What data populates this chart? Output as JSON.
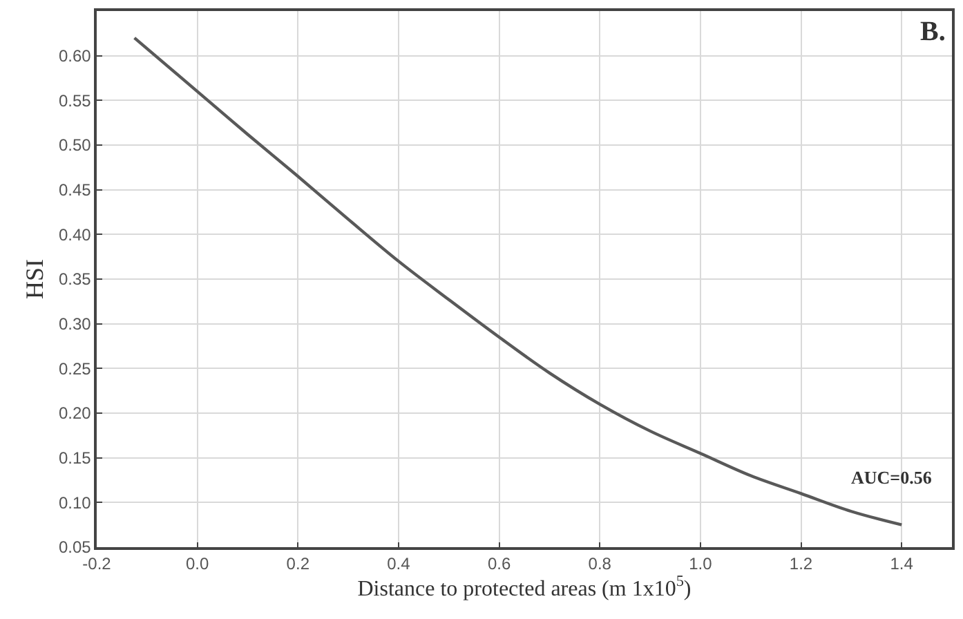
{
  "chart_data": {
    "type": "line",
    "xlabel": "Distance to protected areas (m 1x10$^{5}$)",
    "ylabel": "HSI",
    "annotations": [
      "B.",
      "AUC=0.56"
    ],
    "x": [
      -0.125,
      0.0,
      0.1,
      0.2,
      0.3,
      0.4,
      0.5,
      0.6,
      0.7,
      0.8,
      0.9,
      1.0,
      1.1,
      1.2,
      1.3,
      1.4
    ],
    "series": [
      {
        "color": "#595959",
        "values": [
          0.62,
          0.56,
          0.512,
          0.465,
          0.417,
          0.37,
          0.327,
          0.285,
          0.245,
          0.21,
          0.18,
          0.155,
          0.13,
          0.11,
          0.09,
          0.075
        ]
      }
    ],
    "xlim": [
      -0.2,
      1.5
    ],
    "xticks": [
      {
        "value": -0.2,
        "label": "-0.2"
      },
      {
        "value": 0,
        "label": "0.0"
      },
      0.2,
      0.4,
      0.6,
      0.8,
      {
        "value": 1,
        "label": "1.0"
      },
      1.2,
      1.4
    ],
    "ylim": [
      0.05,
      0.65
    ],
    "yticks": [
      {
        "value": 0.05,
        "label": "0.05"
      },
      {
        "value": 0.1,
        "label": "0.10"
      },
      {
        "value": 0.15,
        "label": "0.15"
      },
      {
        "value": 0.2,
        "label": "0.20"
      },
      {
        "value": 0.25,
        "label": "0.25"
      },
      {
        "value": 0.3,
        "label": "0.30"
      },
      {
        "value": 0.35,
        "label": "0.35"
      },
      {
        "value": 0.4,
        "label": "0.40"
      },
      {
        "value": 0.45,
        "label": "0.45"
      },
      {
        "value": 0.5,
        "label": "0.50"
      },
      {
        "value": 0.55,
        "label": "0.55"
      },
      {
        "value": 0.6,
        "label": "0.60"
      }
    ],
    "grid": true,
    "marker": "none",
    "line_style": "solid"
  }
}
